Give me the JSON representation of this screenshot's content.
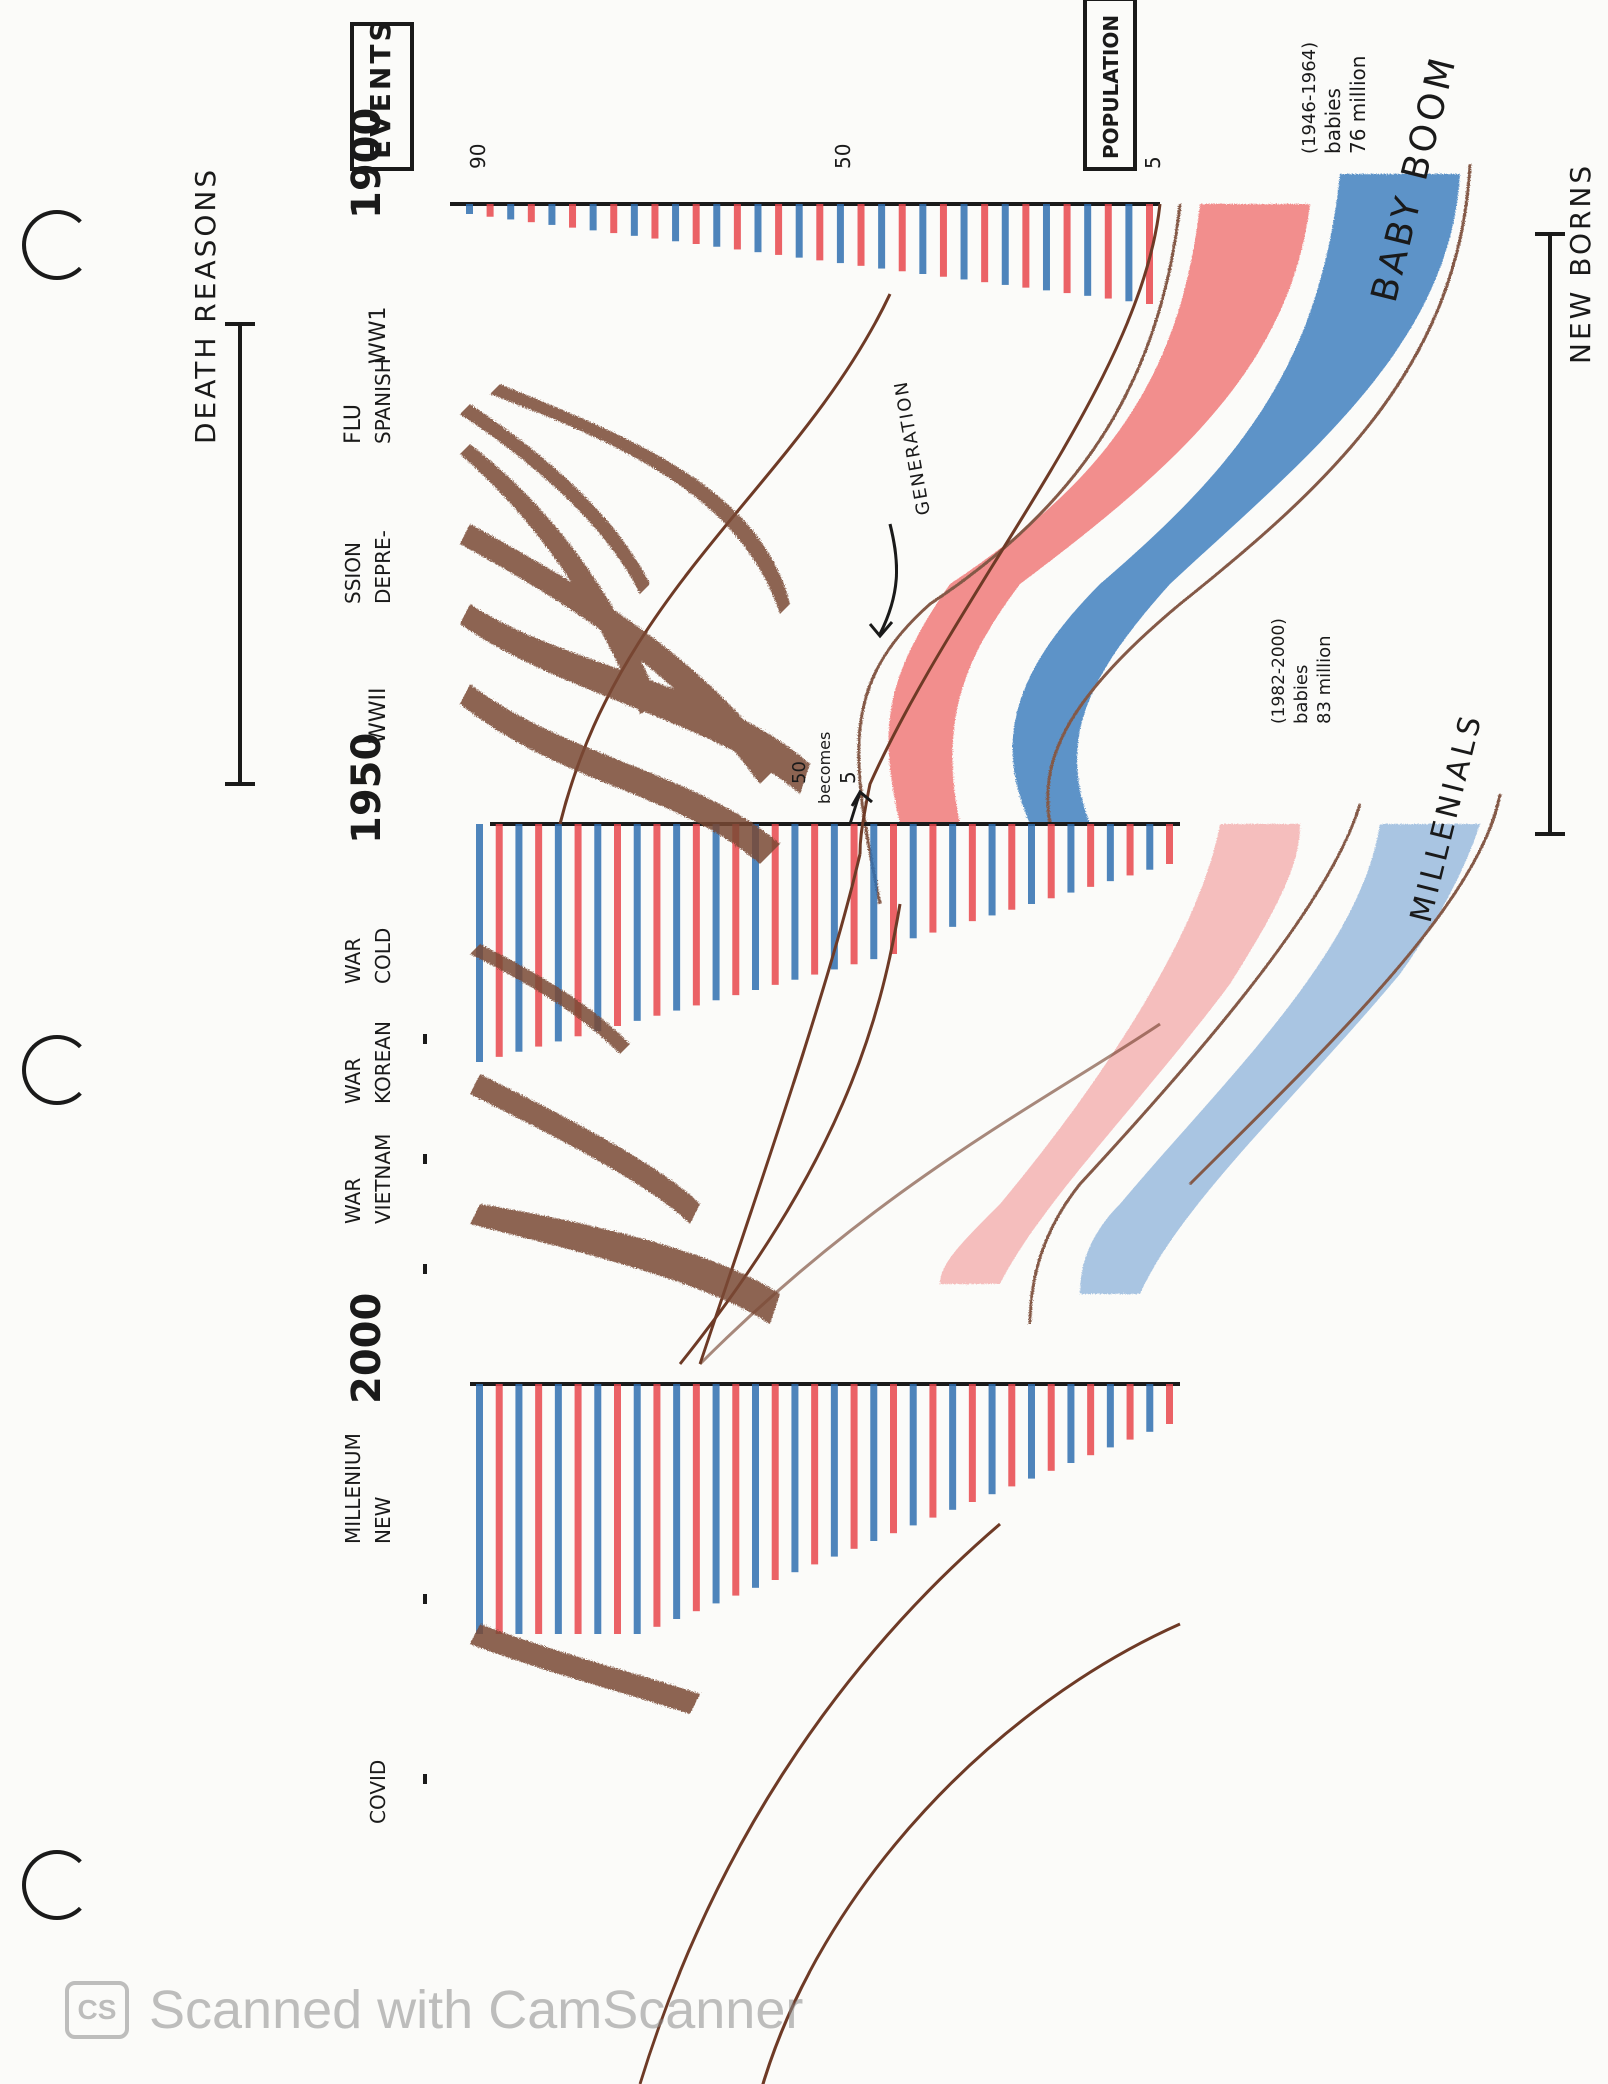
{
  "header": {
    "new_borns": "NEW BORNS"
  },
  "labels": {
    "population": "POPULATION",
    "events": "EVENTS",
    "death_reasons": "DEATH REASONS",
    "generation": "GENERATION",
    "five_becomes_50": [
      "5",
      "becomes",
      "50"
    ]
  },
  "cohorts": [
    {
      "name": "BABY BOOM",
      "note": [
        "76 million",
        "babies",
        "(1946-1964)"
      ]
    },
    {
      "name": "MILLENIALS",
      "note": [
        "83 million",
        "babies",
        "(1982-2000)"
      ]
    }
  ],
  "age_axis": {
    "ticks": [
      "5",
      "50",
      "90"
    ]
  },
  "years": [
    "1900",
    "1950",
    "2000"
  ],
  "events": [
    {
      "label": [
        "WW1"
      ]
    },
    {
      "label": [
        "SPANISH",
        "FLU"
      ]
    },
    {
      "label": [
        "DEPRE-",
        "SSION"
      ]
    },
    {
      "label": [
        "WWII"
      ]
    },
    {
      "label": [
        "COLD",
        "WAR"
      ]
    },
    {
      "label": [
        "KOREAN",
        "WAR"
      ]
    },
    {
      "label": [
        "VIETNAM",
        "WAR"
      ]
    },
    {
      "label": [
        "NEW",
        "MILLENIUM"
      ]
    },
    {
      "label": [
        "COVID"
      ]
    }
  ],
  "watermark": {
    "logo": "CS",
    "text": "Scanned with CamScanner"
  },
  "colors": {
    "female": "#e8474c",
    "male": "#2f6fb0",
    "death": "#6e3a26",
    "ink": "#1a1a1a",
    "paper": "#fbfbf9"
  }
}
